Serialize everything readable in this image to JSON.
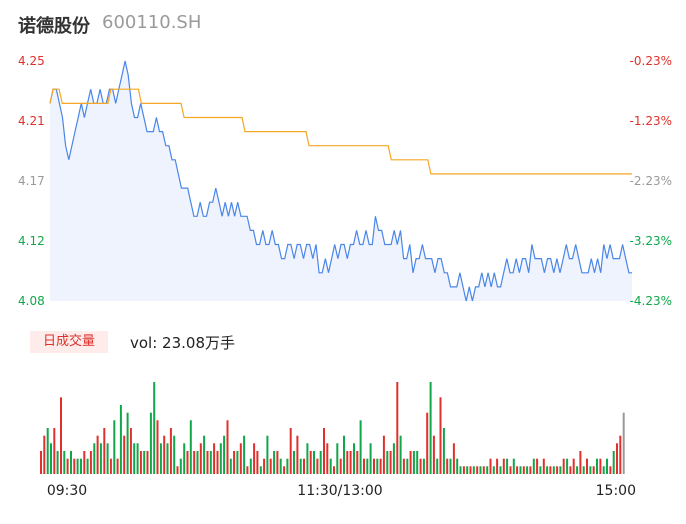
{
  "header": {
    "name": "诺德股份",
    "code": "600110.SH"
  },
  "volume_tab": {
    "label": "日成交量",
    "readout": "vol: 23.08万手"
  },
  "colors": {
    "price_line": "#4a86e8",
    "avg_line": "#f5a623",
    "up": "#e0302b",
    "down": "#12a64a",
    "neutral": "#999999",
    "fill": "#eef3fd"
  },
  "chart_data": [
    {
      "type": "line",
      "y_left_ticks": [
        "4.25",
        "4.21",
        "4.17",
        "4.12",
        "4.08"
      ],
      "y_left_colors": [
        "#e0302b",
        "#e0302b",
        "#999999",
        "#12a64a",
        "#12a64a"
      ],
      "y_right_ticks": [
        "-0.23%",
        "-1.23%",
        "-2.23%",
        "-3.23%",
        "-4.23%"
      ],
      "y_right_colors": [
        "#e0302b",
        "#e0302b",
        "#999999",
        "#12a64a",
        "#12a64a"
      ],
      "ylim": [
        4.08,
        4.25
      ],
      "x_ticks": [
        "09:30",
        "11:30/13:00",
        "15:00"
      ],
      "series": [
        {
          "values": [
            4.22,
            4.23,
            4.23,
            4.22,
            4.21,
            4.19,
            4.18,
            4.19,
            4.2,
            4.21,
            4.22,
            4.21,
            4.22,
            4.23,
            4.22,
            4.22,
            4.23,
            4.22,
            4.22,
            4.23,
            4.23,
            4.22,
            4.23,
            4.24,
            4.25,
            4.24,
            4.22,
            4.21,
            4.21,
            4.22,
            4.21,
            4.2,
            4.2,
            4.2,
            4.21,
            4.2,
            4.2,
            4.19,
            4.19,
            4.18,
            4.18,
            4.17,
            4.16,
            4.16,
            4.16,
            4.15,
            4.14,
            4.14,
            4.15,
            4.14,
            4.14,
            4.15,
            4.15,
            4.16,
            4.15,
            4.14,
            4.15,
            4.14,
            4.15,
            4.14,
            4.15,
            4.14,
            4.14,
            4.14,
            4.13,
            4.13,
            4.12,
            4.12,
            4.13,
            4.12,
            4.12,
            4.13,
            4.12,
            4.12,
            4.11,
            4.11,
            4.12,
            4.12,
            4.11,
            4.12,
            4.12,
            4.11,
            4.12,
            4.12,
            4.11,
            4.12,
            4.1,
            4.1,
            4.11,
            4.1,
            4.11,
            4.12,
            4.11,
            4.12,
            4.12,
            4.11,
            4.12,
            4.12,
            4.13,
            4.12,
            4.12,
            4.13,
            4.12,
            4.12,
            4.14,
            4.13,
            4.13,
            4.12,
            4.12,
            4.12,
            4.13,
            4.12,
            4.13,
            4.11,
            4.11,
            4.12,
            4.1,
            4.11,
            4.11,
            4.12,
            4.11,
            4.11,
            4.11,
            4.1,
            4.11,
            4.11,
            4.1,
            4.1,
            4.09,
            4.09,
            4.09,
            4.1,
            4.09,
            4.08,
            4.09,
            4.08,
            4.09,
            4.09,
            4.1,
            4.09,
            4.1,
            4.09,
            4.1,
            4.09,
            4.09,
            4.1,
            4.11,
            4.1,
            4.1,
            4.11,
            4.1,
            4.11,
            4.11,
            4.1,
            4.12,
            4.11,
            4.11,
            4.11,
            4.1,
            4.11,
            4.11,
            4.1,
            4.11,
            4.1,
            4.11,
            4.12,
            4.11,
            4.11,
            4.12,
            4.11,
            4.1,
            4.1,
            4.1,
            4.11,
            4.1,
            4.11,
            4.1,
            4.12,
            4.11,
            4.12,
            4.11,
            4.11,
            4.11,
            4.12,
            4.11,
            4.1,
            4.1
          ],
          "color": "#4a86e8"
        },
        {
          "values": [
            4.22,
            4.23,
            4.23,
            4.23,
            4.22,
            4.22,
            4.22,
            4.22,
            4.22,
            4.22,
            4.22,
            4.22,
            4.22,
            4.22,
            4.22,
            4.22,
            4.22,
            4.22,
            4.22,
            4.22,
            4.23,
            4.23,
            4.23,
            4.23,
            4.23,
            4.23,
            4.23,
            4.23,
            4.23,
            4.23,
            4.22,
            4.22,
            4.22,
            4.22,
            4.22,
            4.22,
            4.22,
            4.22,
            4.22,
            4.22,
            4.22,
            4.22,
            4.22,
            4.22,
            4.21,
            4.21,
            4.21,
            4.21,
            4.21,
            4.21,
            4.21,
            4.21,
            4.21,
            4.21,
            4.21,
            4.21,
            4.21,
            4.21,
            4.21,
            4.21,
            4.21,
            4.21,
            4.21,
            4.21,
            4.2,
            4.2,
            4.2,
            4.2,
            4.2,
            4.2,
            4.2,
            4.2,
            4.2,
            4.2,
            4.2,
            4.2,
            4.2,
            4.2,
            4.2,
            4.2,
            4.2,
            4.2,
            4.2,
            4.2,
            4.2,
            4.19,
            4.19,
            4.19,
            4.19,
            4.19,
            4.19,
            4.19,
            4.19,
            4.19,
            4.19,
            4.19,
            4.19,
            4.19,
            4.19,
            4.19,
            4.19,
            4.19,
            4.19,
            4.19,
            4.19,
            4.19,
            4.19,
            4.19,
            4.19,
            4.19,
            4.19,
            4.19,
            4.18,
            4.18,
            4.18,
            4.18,
            4.18,
            4.18,
            4.18,
            4.18,
            4.18,
            4.18,
            4.18,
            4.18,
            4.18,
            4.17,
            4.17,
            4.17,
            4.17,
            4.17,
            4.17,
            4.17,
            4.17,
            4.17,
            4.17,
            4.17,
            4.17,
            4.17,
            4.17,
            4.17,
            4.17,
            4.17,
            4.17,
            4.17,
            4.17,
            4.17,
            4.17,
            4.17,
            4.17,
            4.17,
            4.17,
            4.17,
            4.17,
            4.17,
            4.17,
            4.17,
            4.17,
            4.17,
            4.17,
            4.17,
            4.17,
            4.17,
            4.17,
            4.17,
            4.17,
            4.17,
            4.17,
            4.17,
            4.17,
            4.17,
            4.17,
            4.17,
            4.17,
            4.17,
            4.17,
            4.17,
            4.17,
            4.17,
            4.17,
            4.17,
            4.17,
            4.17,
            4.17,
            4.17,
            4.17,
            4.17,
            4.17,
            4.17,
            4.17,
            4.17,
            4.17,
            4.17
          ],
          "color": "#f5a623"
        }
      ]
    },
    {
      "type": "bar",
      "values": [
        3,
        5,
        6,
        4,
        6,
        3,
        10,
        3,
        2,
        3,
        2,
        2,
        2,
        3,
        2,
        3,
        4,
        5,
        4,
        6,
        4,
        2,
        7,
        2,
        9,
        5,
        8,
        6,
        4,
        4,
        3,
        3,
        3,
        8,
        12,
        7,
        4,
        5,
        4,
        6,
        5,
        1,
        2,
        4,
        3,
        7,
        3,
        3,
        4,
        5,
        3,
        3,
        4,
        3,
        4,
        5,
        7,
        2,
        3,
        3,
        4,
        5,
        1,
        2,
        4,
        3,
        1,
        2,
        5,
        2,
        3,
        3,
        2,
        1,
        2,
        6,
        3,
        5,
        2,
        2,
        4,
        3,
        3,
        2,
        3,
        6,
        4,
        2,
        1,
        4,
        2,
        5,
        3,
        3,
        4,
        3,
        7,
        2,
        2,
        4,
        2,
        2,
        2,
        5,
        3,
        3,
        4,
        12,
        5,
        2,
        2,
        3,
        3,
        3,
        2,
        2,
        8,
        12,
        5,
        2,
        10,
        6,
        2,
        2,
        4,
        2,
        1,
        1,
        1,
        1,
        1,
        1,
        1,
        1,
        1,
        2,
        1,
        2,
        1,
        2,
        2,
        1,
        2,
        1,
        1,
        1,
        1,
        1,
        2,
        2,
        1,
        2,
        1,
        1,
        1,
        1,
        1,
        2,
        2,
        1,
        2,
        1,
        3,
        1,
        2,
        1,
        1,
        2,
        2,
        1,
        2,
        1,
        3,
        4,
        5,
        8
      ],
      "colors": [
        "r",
        "r",
        "g",
        "g",
        "r",
        "g",
        "r",
        "g",
        "r",
        "g",
        "r",
        "g",
        "g",
        "r",
        "g",
        "r",
        "g",
        "r",
        "g",
        "r",
        "g",
        "r",
        "g",
        "r",
        "g",
        "r",
        "g",
        "r",
        "g",
        "g",
        "r",
        "g",
        "r",
        "g",
        "g",
        "r",
        "g",
        "r",
        "g",
        "r",
        "g",
        "r",
        "g",
        "g",
        "r",
        "g",
        "r",
        "g",
        "r",
        "g",
        "r",
        "g",
        "r",
        "r",
        "g",
        "g",
        "r",
        "g",
        "r",
        "g",
        "r",
        "g",
        "r",
        "g",
        "r",
        "r",
        "g",
        "r",
        "g",
        "r",
        "g",
        "r",
        "g",
        "r",
        "g",
        "r",
        "g",
        "r",
        "g",
        "r",
        "g",
        "r",
        "g",
        "r",
        "g",
        "r",
        "r",
        "g",
        "r",
        "g",
        "r",
        "g",
        "r",
        "r",
        "g",
        "r",
        "g",
        "r",
        "g",
        "g",
        "r",
        "g",
        "r",
        "r",
        "g",
        "r",
        "g",
        "r",
        "g",
        "r",
        "g",
        "r",
        "g",
        "g",
        "r",
        "g",
        "r",
        "g",
        "r",
        "g",
        "r",
        "g",
        "r",
        "g",
        "r",
        "g",
        "g",
        "r",
        "g",
        "r",
        "g",
        "r",
        "g",
        "r",
        "g",
        "r",
        "g",
        "r",
        "g",
        "r",
        "g",
        "r",
        "g",
        "r",
        "g",
        "r",
        "g",
        "r",
        "g",
        "r",
        "g",
        "r",
        "g",
        "r",
        "g",
        "r",
        "g",
        "r",
        "g",
        "r",
        "r",
        "g",
        "r",
        "g",
        "r",
        "g",
        "r",
        "g",
        "r",
        "g",
        "g",
        "r",
        "g",
        "r",
        "r",
        "n"
      ]
    }
  ]
}
